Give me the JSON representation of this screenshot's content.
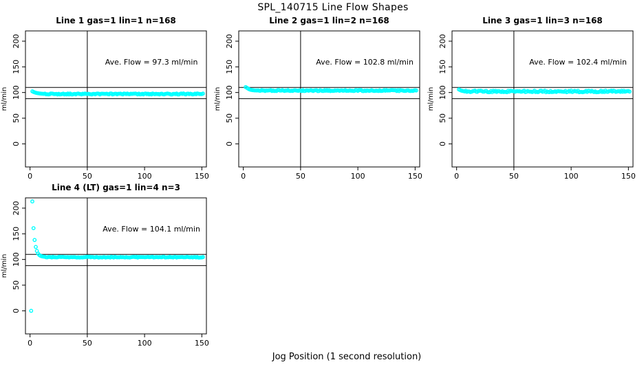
{
  "figure": {
    "title": "SPL_140715  Line Flow Shapes",
    "xlabel": "Jog Position (1 second resolution)",
    "background_color": "#ffffff",
    "point_color": "#00ffff",
    "axis_color": "#000000",
    "marker": "open-circle"
  },
  "chart_data": [
    {
      "type": "scatter",
      "title": "Line 1 gas=1 lin=1 n=168",
      "ylabel": "ml/min",
      "annotation": "Ave. Flow =  97.3  ml/min",
      "annotation_xy": [
        106,
        160
      ],
      "ave_flow_ml_min": 97.3,
      "line": 1,
      "gas": 1,
      "lin": 1,
      "n": 168,
      "xlim": [
        -4,
        154
      ],
      "ylim": [
        -45,
        220
      ],
      "xticks": [
        0,
        50,
        100,
        150
      ],
      "yticks": [
        0,
        50,
        100,
        150,
        200
      ],
      "vline_x": 50,
      "limit_lines": [
        88,
        110
      ],
      "head_points": [
        [
          2,
          102.3
        ],
        [
          3,
          101.2
        ],
        [
          4,
          100.3
        ],
        [
          5,
          99.6
        ],
        [
          6,
          99.0
        ],
        [
          7,
          98.6
        ],
        [
          8,
          98.2
        ],
        [
          9,
          97.9
        ],
        [
          10,
          97.7
        ],
        [
          11,
          97.5
        ],
        [
          12,
          97.4
        ]
      ],
      "steady": {
        "x_from": 13,
        "x_to": 151,
        "mean": 97.2,
        "jitter": 1.0,
        "seed": 11
      },
      "extra_points": []
    },
    {
      "type": "scatter",
      "title": "Line 2 gas=1 lin=2 n=168",
      "ylabel": "ml/min",
      "annotation": "Ave. Flow =  102.8  ml/min",
      "annotation_xy": [
        106,
        160
      ],
      "ave_flow_ml_min": 102.8,
      "line": 2,
      "gas": 1,
      "lin": 2,
      "n": 168,
      "xlim": [
        -4,
        154
      ],
      "ylim": [
        -45,
        220
      ],
      "xticks": [
        0,
        50,
        100,
        150
      ],
      "yticks": [
        0,
        50,
        100,
        150,
        200
      ],
      "vline_x": 50,
      "limit_lines": [
        88,
        110
      ],
      "head_points": [
        [
          2,
          110.5
        ],
        [
          3,
          109.3
        ],
        [
          4,
          107.8
        ],
        [
          5,
          106.5
        ],
        [
          6,
          105.6
        ],
        [
          7,
          105.0
        ],
        [
          8,
          104.6
        ],
        [
          9,
          104.3
        ],
        [
          10,
          104.1
        ]
      ],
      "steady": {
        "x_from": 11,
        "x_to": 151,
        "mean": 103.8,
        "jitter": 1.0,
        "seed": 22
      },
      "extra_points": []
    },
    {
      "type": "scatter",
      "title": "Line 3 gas=1 lin=3 n=168",
      "ylabel": "ml/min",
      "annotation": "Ave. Flow =  102.4  ml/min",
      "annotation_xy": [
        106,
        160
      ],
      "ave_flow_ml_min": 102.4,
      "line": 3,
      "gas": 1,
      "lin": 3,
      "n": 168,
      "xlim": [
        -4,
        154
      ],
      "ylim": [
        -45,
        220
      ],
      "xticks": [
        0,
        50,
        100,
        150
      ],
      "yticks": [
        0,
        50,
        100,
        150,
        200
      ],
      "vline_x": 50,
      "limit_lines": [
        88,
        110
      ],
      "head_points": [
        [
          2,
          106.0
        ],
        [
          3,
          104.8
        ],
        [
          4,
          103.8
        ],
        [
          5,
          103.2
        ],
        [
          6,
          102.8
        ]
      ],
      "steady": {
        "x_from": 7,
        "x_to": 151,
        "mean": 102.2,
        "jitter": 1.6,
        "seed": 33
      },
      "extra_points": []
    },
    {
      "type": "scatter",
      "title": "Line 4 (LT) gas=1 lin=4 n=3",
      "ylabel": "ml/min",
      "annotation": "Ave. Flow =  104.1  ml/min",
      "annotation_xy": [
        106,
        160
      ],
      "ave_flow_ml_min": 104.1,
      "line": 4,
      "gas": 1,
      "lin": 4,
      "n": 3,
      "xlim": [
        -4,
        154
      ],
      "ylim": [
        -45,
        220
      ],
      "xticks": [
        0,
        50,
        100,
        150
      ],
      "yticks": [
        0,
        50,
        100,
        150,
        200
      ],
      "vline_x": 50,
      "limit_lines": [
        88,
        110
      ],
      "head_points": [
        [
          2,
          213
        ],
        [
          3,
          161
        ],
        [
          4,
          138
        ],
        [
          5,
          124.5
        ],
        [
          6,
          116.5
        ],
        [
          7,
          111.5
        ],
        [
          8,
          108.8
        ],
        [
          9,
          107.3
        ],
        [
          10,
          106.4
        ],
        [
          11,
          105.9
        ],
        [
          12,
          105.5
        ],
        [
          13,
          105.2
        ]
      ],
      "steady": {
        "x_from": 14,
        "x_to": 151,
        "mean": 104.5,
        "jitter": 0.8,
        "seed": 44
      },
      "extra_points": [
        [
          1,
          0
        ]
      ]
    }
  ]
}
